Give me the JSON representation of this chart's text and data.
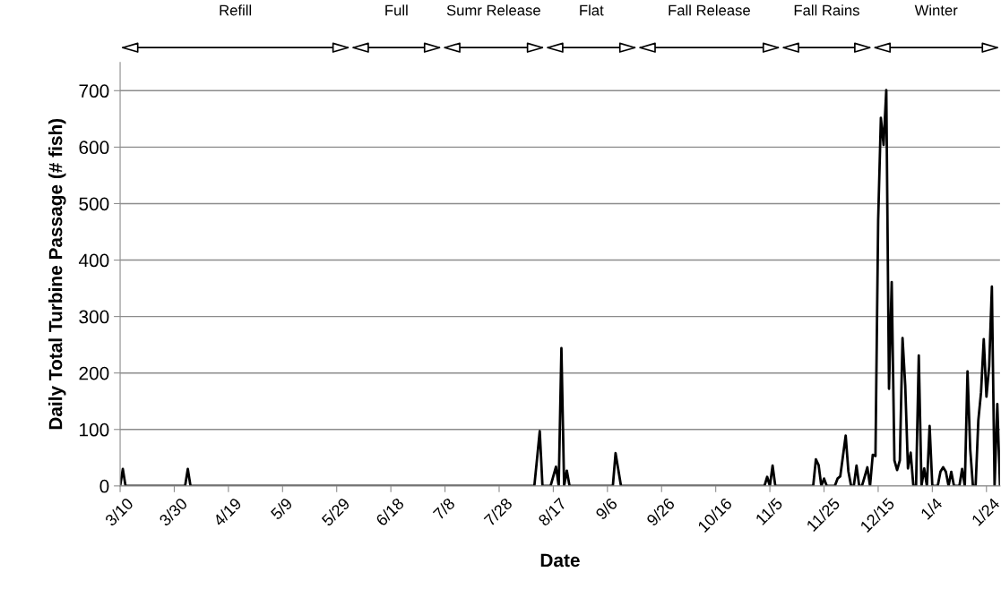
{
  "chart_data": {
    "type": "line",
    "xlabel": "Date",
    "ylabel": "Daily Total Turbine Passage (# fish)",
    "categories": [
      "3/10",
      null,
      null,
      null,
      null,
      null,
      null,
      null,
      null,
      null,
      null,
      null,
      null,
      null,
      null,
      null,
      null,
      null,
      null,
      null,
      "3/30",
      null,
      null,
      null,
      null,
      null,
      null,
      null,
      null,
      null,
      null,
      null,
      null,
      null,
      null,
      null,
      null,
      null,
      null,
      null,
      "4/19",
      null,
      null,
      null,
      null,
      null,
      null,
      null,
      null,
      null,
      null,
      null,
      null,
      null,
      null,
      null,
      null,
      null,
      null,
      null,
      "5/9",
      null,
      null,
      null,
      null,
      null,
      null,
      null,
      null,
      null,
      null,
      null,
      null,
      null,
      null,
      null,
      null,
      null,
      null,
      null,
      "5/29",
      null,
      null,
      null,
      null,
      null,
      null,
      null,
      null,
      null,
      null,
      null,
      null,
      null,
      null,
      null,
      null,
      null,
      null,
      null,
      "6/18",
      null,
      null,
      null,
      null,
      null,
      null,
      null,
      null,
      null,
      null,
      null,
      null,
      null,
      null,
      null,
      null,
      null,
      null,
      null,
      "7/8",
      null,
      null,
      null,
      null,
      null,
      null,
      null,
      null,
      null,
      null,
      null,
      null,
      null,
      null,
      null,
      null,
      null,
      null,
      null,
      "7/28",
      null,
      null,
      null,
      null,
      null,
      null,
      null,
      null,
      null,
      null,
      null,
      null,
      null,
      null,
      null,
      null,
      null,
      null,
      null,
      "8/17",
      null,
      null,
      null,
      null,
      null,
      null,
      null,
      null,
      null,
      null,
      null,
      null,
      null,
      null,
      null,
      null,
      null,
      null,
      null,
      "9/6",
      null,
      null,
      null,
      null,
      null,
      null,
      null,
      null,
      null,
      null,
      null,
      null,
      null,
      null,
      null,
      null,
      null,
      null,
      null,
      "9/26",
      null,
      null,
      null,
      null,
      null,
      null,
      null,
      null,
      null,
      null,
      null,
      null,
      null,
      null,
      null,
      null,
      null,
      null,
      null,
      "10/16",
      null,
      null,
      null,
      null,
      null,
      null,
      null,
      null,
      null,
      null,
      null,
      null,
      null,
      null,
      null,
      null,
      null,
      null,
      null,
      "11/5",
      null,
      null,
      null,
      null,
      null,
      null,
      null,
      null,
      null,
      null,
      null,
      null,
      null,
      null,
      null,
      null,
      null,
      null,
      null,
      "11/25",
      null,
      null,
      null,
      null,
      null,
      null,
      null,
      null,
      null,
      null,
      null,
      null,
      null,
      null,
      null,
      null,
      null,
      null,
      null,
      "12/15",
      null,
      null,
      null,
      null,
      null,
      null,
      null,
      null,
      null,
      null,
      null,
      null,
      null,
      null,
      null,
      null,
      null,
      null,
      null,
      "1/4",
      null,
      null,
      null,
      null,
      null,
      null,
      null,
      null,
      null,
      null,
      null,
      null,
      null,
      null,
      null,
      null,
      null,
      null,
      null,
      "1/24",
      null,
      null,
      null,
      null,
      null
    ],
    "series": [
      {
        "color": "#000000",
        "values": [
          0,
          30,
          0,
          0,
          0,
          0,
          0,
          0,
          0,
          0,
          0,
          0,
          0,
          0,
          0,
          0,
          0,
          0,
          0,
          0,
          0,
          0,
          0,
          0,
          0,
          30,
          0,
          0,
          0,
          0,
          0,
          0,
          0,
          0,
          0,
          0,
          0,
          0,
          0,
          0,
          0,
          0,
          0,
          0,
          0,
          0,
          0,
          0,
          0,
          0,
          0,
          0,
          0,
          0,
          0,
          0,
          0,
          0,
          0,
          0,
          0,
          0,
          0,
          0,
          0,
          0,
          0,
          0,
          0,
          0,
          0,
          0,
          0,
          0,
          0,
          0,
          0,
          0,
          0,
          0,
          0,
          0,
          0,
          0,
          0,
          0,
          0,
          0,
          0,
          0,
          0,
          0,
          0,
          0,
          0,
          0,
          0,
          0,
          0,
          0,
          0,
          0,
          0,
          0,
          0,
          0,
          0,
          0,
          0,
          0,
          0,
          0,
          0,
          0,
          0,
          0,
          0,
          0,
          0,
          0,
          0,
          0,
          0,
          0,
          0,
          0,
          0,
          0,
          0,
          0,
          0,
          0,
          0,
          0,
          0,
          0,
          0,
          0,
          0,
          0,
          0,
          0,
          0,
          0,
          0,
          0,
          0,
          0,
          0,
          0,
          0,
          0,
          0,
          0,
          48,
          97,
          0,
          0,
          0,
          0,
          17,
          34,
          0,
          244,
          0,
          27,
          0,
          0,
          0,
          0,
          0,
          0,
          0,
          0,
          0,
          0,
          0,
          0,
          0,
          0,
          0,
          0,
          0,
          58,
          29,
          0,
          0,
          0,
          0,
          0,
          0,
          0,
          0,
          0,
          0,
          0,
          0,
          0,
          0,
          0,
          0,
          0,
          0,
          0,
          0,
          0,
          0,
          0,
          0,
          0,
          0,
          0,
          0,
          0,
          0,
          0,
          0,
          0,
          0,
          0,
          0,
          0,
          0,
          0,
          0,
          0,
          0,
          0,
          0,
          0,
          0,
          0,
          0,
          0,
          0,
          0,
          0,
          0,
          0,
          16,
          0,
          36,
          0,
          0,
          0,
          0,
          0,
          0,
          0,
          0,
          0,
          0,
          0,
          0,
          0,
          0,
          0,
          47,
          37,
          0,
          13,
          0,
          0,
          0,
          0,
          13,
          17,
          53,
          89,
          26,
          0,
          0,
          36,
          0,
          0,
          16,
          33,
          0,
          55,
          53,
          471,
          652,
          604,
          701,
          172,
          361,
          45,
          28,
          45,
          262,
          178,
          31,
          59,
          0,
          0,
          231,
          0,
          31,
          0,
          106,
          0,
          0,
          0,
          25,
          33,
          25,
          0,
          25,
          0,
          0,
          0,
          30,
          0,
          203,
          65,
          0,
          0,
          116,
          166,
          260,
          158,
          212,
          353,
          0,
          145,
          0
        ]
      }
    ],
    "ylim": [
      0,
      750
    ],
    "yticks": [
      0,
      100,
      200,
      300,
      400,
      500,
      600,
      700
    ],
    "grid": "y",
    "marker": "none",
    "line_style": "solid",
    "annotations": [
      "Refill",
      "Full",
      "Sumr Release",
      "Flat",
      "Fall Release",
      "Fall Rains",
      "Winter"
    ]
  }
}
